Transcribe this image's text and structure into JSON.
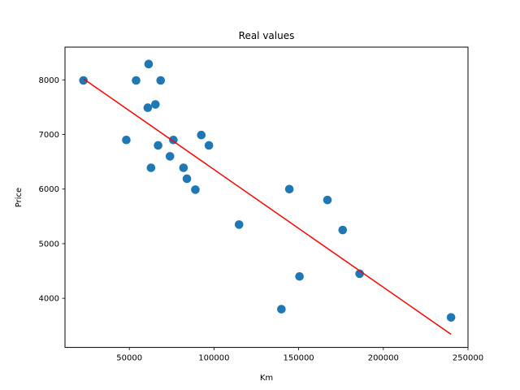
{
  "chart_data": {
    "type": "scatter",
    "title": "Real values",
    "xlabel": "Km",
    "ylabel": "Price",
    "xlim": [
      12000,
      250000
    ],
    "ylim": [
      3100,
      8600
    ],
    "xticks": [
      50000,
      100000,
      150000,
      200000,
      250000
    ],
    "xtick_labels": [
      "50000",
      "100000",
      "150000",
      "200000",
      "250000"
    ],
    "yticks": [
      4000,
      5000,
      6000,
      7000,
      8000
    ],
    "ytick_labels": [
      "4000",
      "5000",
      "6000",
      "7000",
      "8000"
    ],
    "grid": false,
    "points": [
      {
        "x": 22900,
        "y": 7990
      },
      {
        "x": 48200,
        "y": 6900
      },
      {
        "x": 54000,
        "y": 7990
      },
      {
        "x": 60900,
        "y": 7490
      },
      {
        "x": 61400,
        "y": 8290
      },
      {
        "x": 62800,
        "y": 6390
      },
      {
        "x": 65400,
        "y": 7550
      },
      {
        "x": 67000,
        "y": 6800
      },
      {
        "x": 68500,
        "y": 7990
      },
      {
        "x": 74000,
        "y": 6600
      },
      {
        "x": 76000,
        "y": 6900
      },
      {
        "x": 82000,
        "y": 6390
      },
      {
        "x": 84000,
        "y": 6190
      },
      {
        "x": 89000,
        "y": 5990
      },
      {
        "x": 92500,
        "y": 6990
      },
      {
        "x": 97000,
        "y": 6800
      },
      {
        "x": 114800,
        "y": 5350
      },
      {
        "x": 139800,
        "y": 3800
      },
      {
        "x": 144500,
        "y": 5999
      },
      {
        "x": 150500,
        "y": 4400
      },
      {
        "x": 167000,
        "y": 5800
      },
      {
        "x": 176000,
        "y": 5250
      },
      {
        "x": 186000,
        "y": 4450
      },
      {
        "x": 240000,
        "y": 3650
      }
    ],
    "fit_line": {
      "x": [
        22900,
        240000
      ],
      "y": [
        8020,
        3340
      ]
    },
    "point_color": "#1f77b4",
    "line_color": "#ff0000"
  }
}
